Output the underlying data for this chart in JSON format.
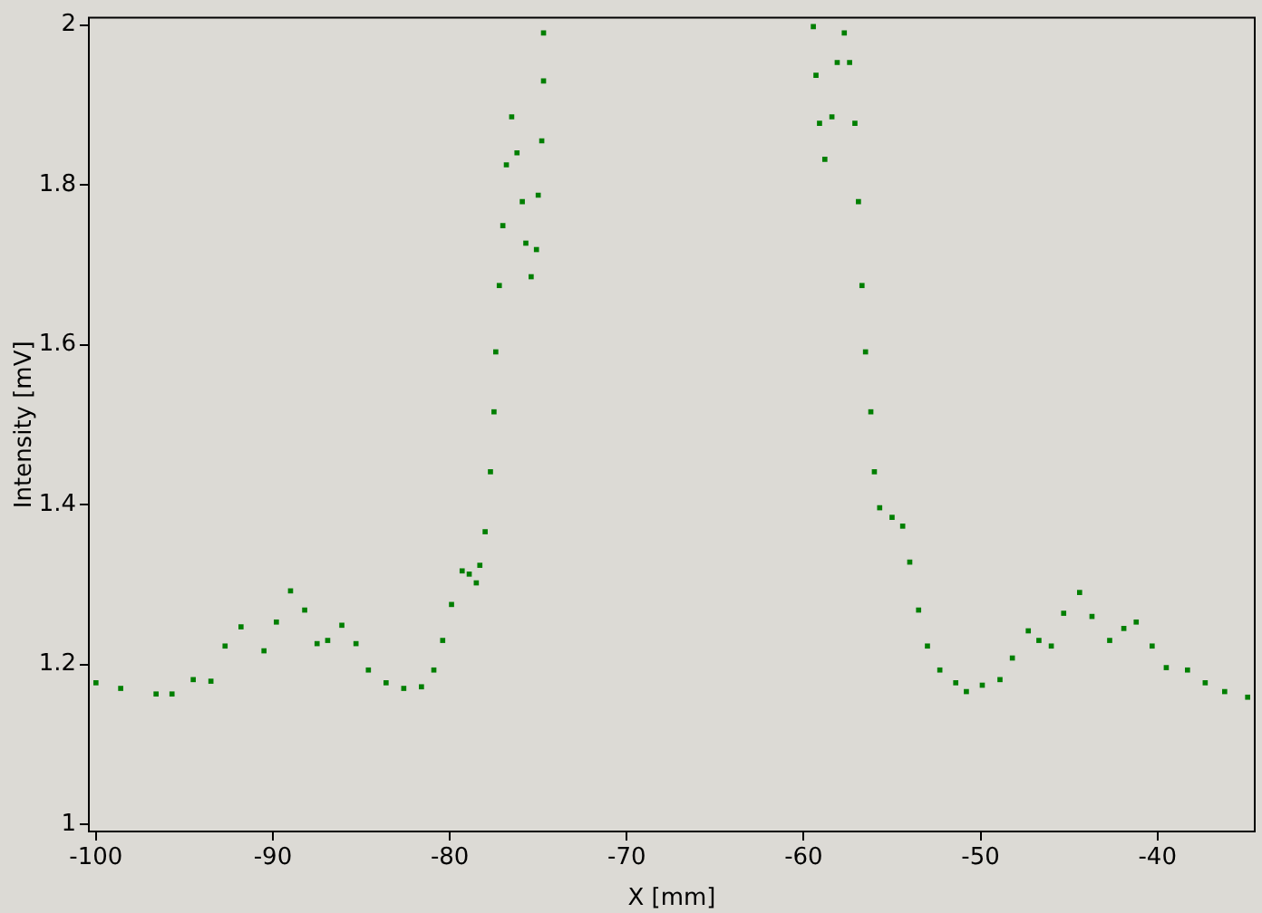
{
  "chart_data": {
    "type": "scatter",
    "xlabel": "X [mm]",
    "ylabel": "Intensity [mV]",
    "xlim": [
      -100.4,
      -34.5
    ],
    "ylim": [
      0.991,
      2.009
    ],
    "xticks": [
      -100,
      -90,
      -80,
      -70,
      -60,
      -50,
      -40
    ],
    "yticks": [
      1,
      1.2,
      1.4,
      1.6,
      1.8,
      2
    ],
    "grid": false,
    "legend": false,
    "marker": "square",
    "series": [
      {
        "color": "#007f00",
        "x": [
          -100,
          -98.6,
          -96.6,
          -95.7,
          -94.5,
          -93.5,
          -92.7,
          -91.8,
          -90.5,
          -89.8,
          -89.0,
          -88.2,
          -87.5,
          -86.9,
          -86.1,
          -85.3,
          -84.6,
          -83.6,
          -82.6,
          -81.6,
          -80.9,
          -80.4,
          -79.9,
          -79.3,
          -78.9,
          -78.5,
          -78.3,
          -78.0,
          -77.7,
          -77.5,
          -77.4,
          -77.2,
          -77.0,
          -76.8,
          -76.5,
          -76.2,
          -75.9,
          -75.7,
          -75.4,
          -75.1,
          -75.0,
          -74.8,
          -74.7,
          -74.7,
          -59.45,
          -59.3,
          -59.1,
          -58.8,
          -58.4,
          -58.1,
          -57.7,
          -57.4,
          -57.1,
          -56.9,
          -56.7,
          -56.5,
          -56.2,
          -56.0,
          -55.7,
          -55.0,
          -54.4,
          -54.0,
          -53.5,
          -53.0,
          -52.3,
          -51.4,
          -50.8,
          -49.9,
          -48.9,
          -48.2,
          -47.3,
          -46.7,
          -46.0,
          -45.3,
          -44.4,
          -43.7,
          -42.7,
          -41.9,
          -41.2,
          -40.3,
          -39.5,
          -38.3,
          -37.3,
          -36.2,
          -34.9
        ],
        "values": [
          1.177,
          1.17,
          1.163,
          1.163,
          1.181,
          1.179,
          1.223,
          1.247,
          1.217,
          1.253,
          1.292,
          1.268,
          1.226,
          1.23,
          1.249,
          1.226,
          1.193,
          1.177,
          1.17,
          1.172,
          1.193,
          1.23,
          1.275,
          1.317,
          1.313,
          1.302,
          1.324,
          1.366,
          1.441,
          1.516,
          1.591,
          1.674,
          1.749,
          1.825,
          1.885,
          1.84,
          1.779,
          1.727,
          1.685,
          1.719,
          1.787,
          1.855,
          1.93,
          1.99,
          1.998,
          1.937,
          1.877,
          1.832,
          1.885,
          1.953,
          1.99,
          1.953,
          1.877,
          1.779,
          1.674,
          1.591,
          1.516,
          1.441,
          1.396,
          1.384,
          1.373,
          1.328,
          1.268,
          1.223,
          1.193,
          1.177,
          1.166,
          1.174,
          1.181,
          1.208,
          1.242,
          1.23,
          1.223,
          1.264,
          1.29,
          1.26,
          1.23,
          1.245,
          1.253,
          1.223,
          1.196,
          1.193,
          1.177,
          1.166,
          1.159
        ]
      }
    ]
  }
}
